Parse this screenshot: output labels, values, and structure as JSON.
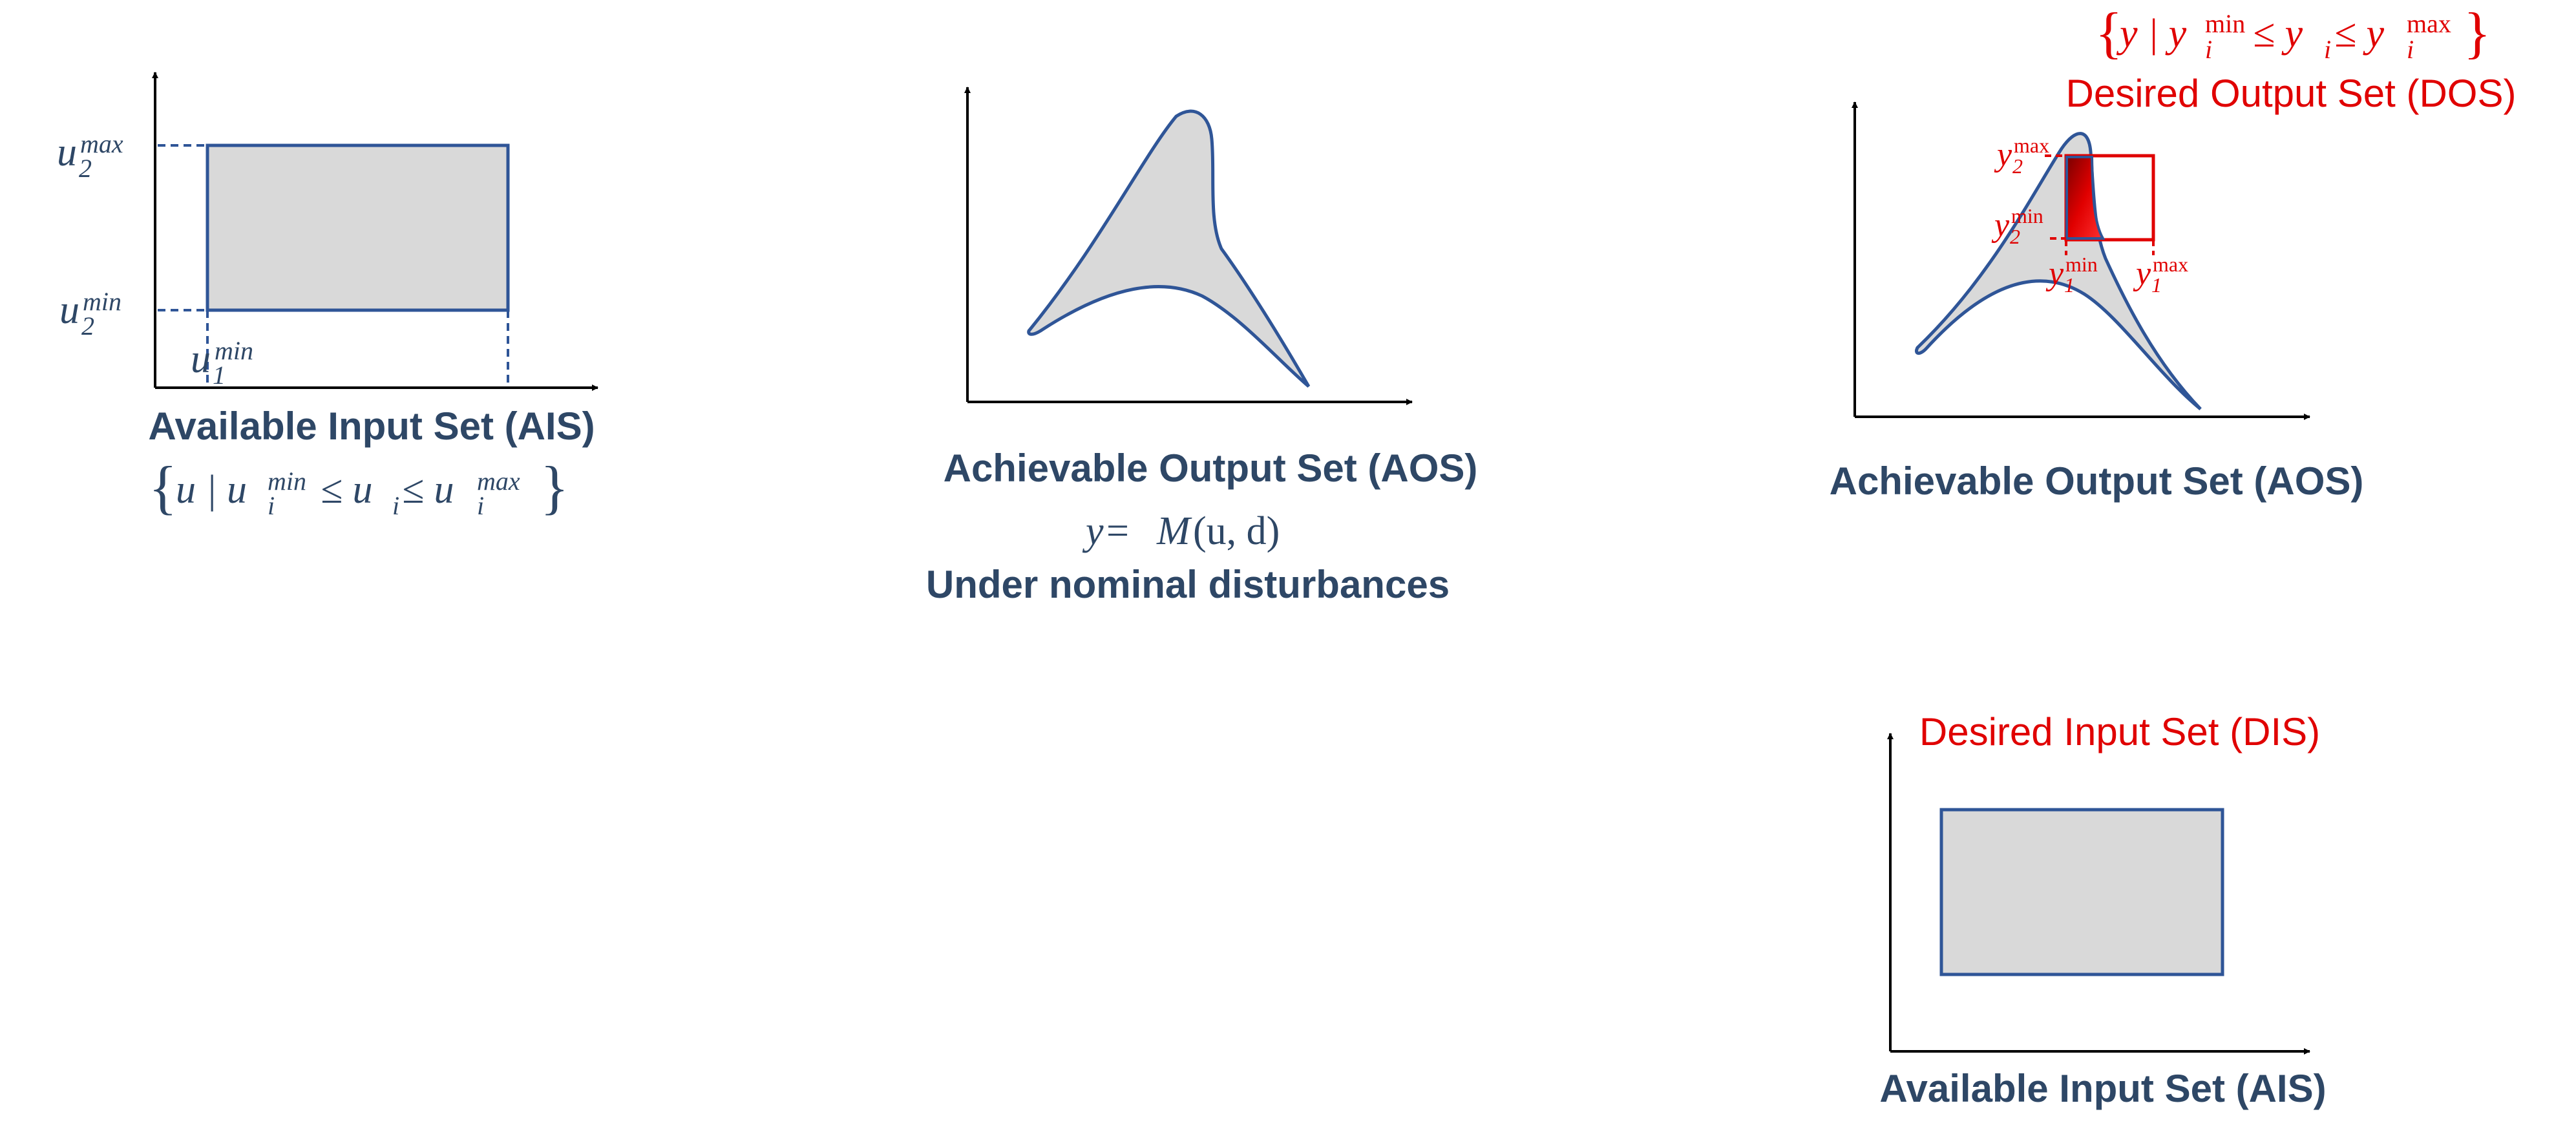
{
  "panel1": {
    "title": "Available Input Set (AIS)",
    "u2max_base": "u",
    "u2max_sub": "2",
    "u2max_sup": "max",
    "u2min_base": "u",
    "u2min_sub": "2",
    "u2min_sup": "min",
    "u1min_base": "u",
    "u1min_sub": "1",
    "u1min_sup": "min",
    "set_lbrace": "{",
    "set_a": "u | u",
    "set_i1": "i",
    "set_min": "min",
    "set_b": " ≤ u",
    "set_i2": "i",
    "set_c": " ≤ u",
    "set_i3": "i",
    "set_max": "max",
    "set_rbrace": "}"
  },
  "panel2": {
    "title": "Achievable Output Set (AOS)",
    "eq_y": "y",
    "eq_eq": " = ",
    "eq_M": "M",
    "eq_args": "(u, d)",
    "subtitle": "Under nominal disturbances"
  },
  "panel3": {
    "title": "Achievable Output Set (AOS)",
    "dos_title": "Desired Output Set (DOS)",
    "set_lbrace": "{",
    "set_a": "y | y",
    "set_i1": "i",
    "set_min": "min",
    "set_b": " ≤ y",
    "set_i2": "i",
    "set_c": " ≤ y",
    "set_i3": "i",
    "set_max": "max",
    "set_rbrace": "}",
    "y2max_base": "y",
    "y2max_sub": "2",
    "y2max_sup": "max",
    "y2min_base": "y",
    "y2min_sub": "2",
    "y2min_sup": "min",
    "y1min_base": "y",
    "y1min_sub": "1",
    "y1min_sup": "min",
    "y1max_base": "y",
    "y1max_sub": "1",
    "y1max_sup": "max"
  },
  "panel4": {
    "title": "Available Input Set (AIS)",
    "dis_title": "Desired Input Set (DIS)"
  },
  "colors": {
    "navy": "#2e4766",
    "outline": "#2f5597",
    "fill": "#d9d9d9",
    "red": "#e00000"
  }
}
